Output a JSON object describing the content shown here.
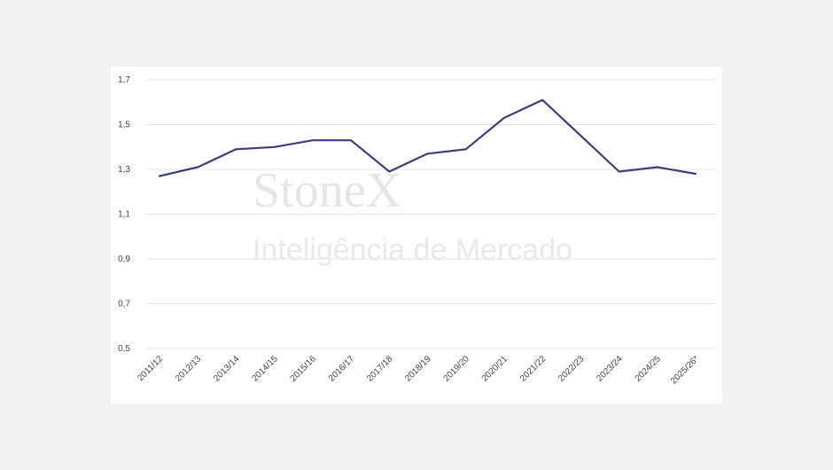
{
  "watermark": {
    "brand": "StoneX",
    "subtitle": "Inteligência de Mercado"
  },
  "colors": {
    "line": "#3a3f7a",
    "grid": "#e3e3e3"
  },
  "chart_data": {
    "type": "line",
    "title": "",
    "xlabel": "",
    "ylabel": "",
    "categories": [
      "2011/12",
      "2012/13",
      "2013/14",
      "2014/15",
      "2015/16",
      "2016/17",
      "2017/18",
      "2018/19",
      "2019/20",
      "2020/21",
      "2021/22",
      "2022/23",
      "2023/24",
      "2024/25",
      "2025/26*"
    ],
    "series": [
      {
        "values": [
          1.27,
          1.31,
          1.39,
          1.4,
          1.43,
          1.43,
          1.29,
          1.37,
          1.39,
          1.53,
          1.61,
          1.45,
          1.29,
          1.31,
          1.28
        ]
      }
    ],
    "ylim": [
      0.5,
      1.7
    ],
    "yticks": [
      "0,5",
      "0,7",
      "0,9",
      "1,1",
      "1,3",
      "1,5",
      "1,7"
    ],
    "ytick_values": [
      0.5,
      0.7,
      0.9,
      1.1,
      1.3,
      1.5,
      1.7
    ],
    "grid": true,
    "legend": "none"
  }
}
